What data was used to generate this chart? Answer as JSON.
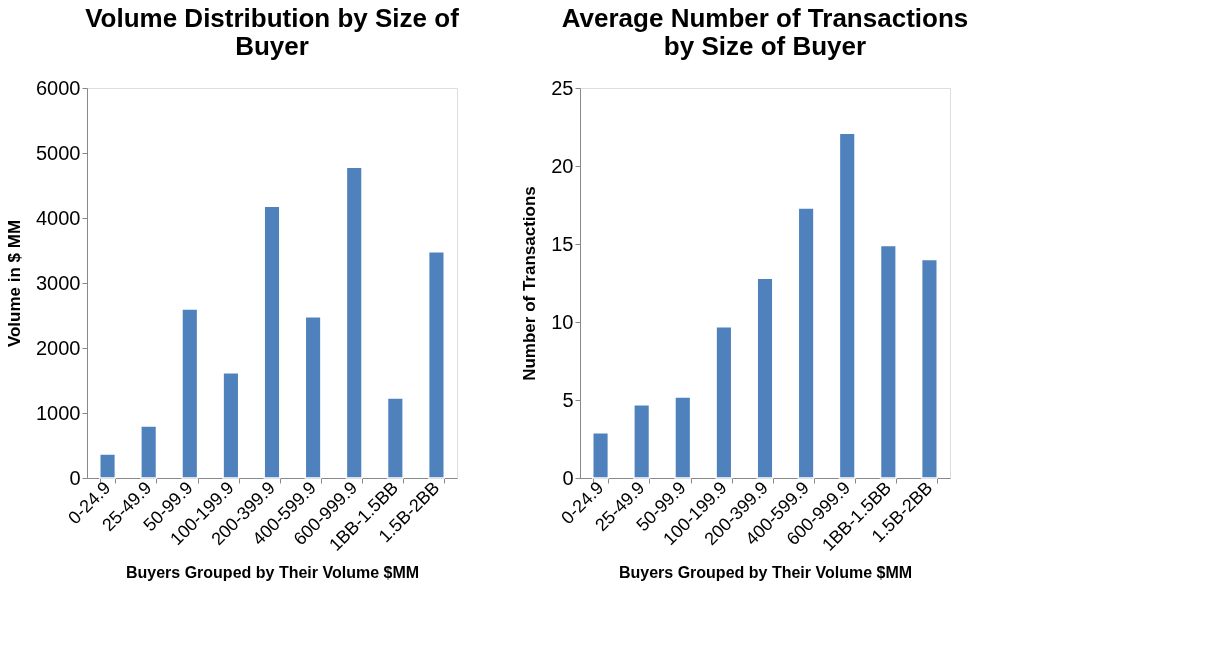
{
  "chart_data": [
    {
      "type": "bar",
      "title": "Volume Distribution by Size of Buyer",
      "xlabel": "Buyers Grouped by Their Volume $MM",
      "ylabel": "Volume  in $ MM",
      "categories": [
        "0-24.9",
        "25-49.9",
        "50-99.9",
        "100-199.9",
        "200-399.9",
        "400-599.9",
        "600-999.9",
        "1BB-1.5BB",
        "1.5B-2BB"
      ],
      "values": [
        370,
        800,
        2600,
        1620,
        4180,
        2480,
        4780,
        1230,
        3480
      ],
      "color": "#4f81bd",
      "ylim": [
        0,
        6000
      ],
      "yticks": [
        0,
        1000,
        2000,
        3000,
        4000,
        5000,
        6000
      ],
      "grid": false
    },
    {
      "type": "bar",
      "title": "Average Number of Transactions by Size of Buyer",
      "xlabel": "Buyers Grouped by Their Volume $MM",
      "ylabel": "Number of Transactions",
      "categories": [
        "0-24.9",
        "25-49.9",
        "50-99.9",
        "100-199.9",
        "200-399.9",
        "400-599.9",
        "600-999.9",
        "1BB-1.5BB",
        "1.5B-2BB"
      ],
      "values": [
        2.9,
        4.7,
        5.2,
        9.7,
        12.8,
        17.3,
        22.1,
        14.9,
        14.0
      ],
      "color": "#4f81bd",
      "ylim": [
        0,
        25
      ],
      "yticks": [
        0,
        5,
        10,
        15,
        20,
        25
      ],
      "grid": false
    }
  ]
}
